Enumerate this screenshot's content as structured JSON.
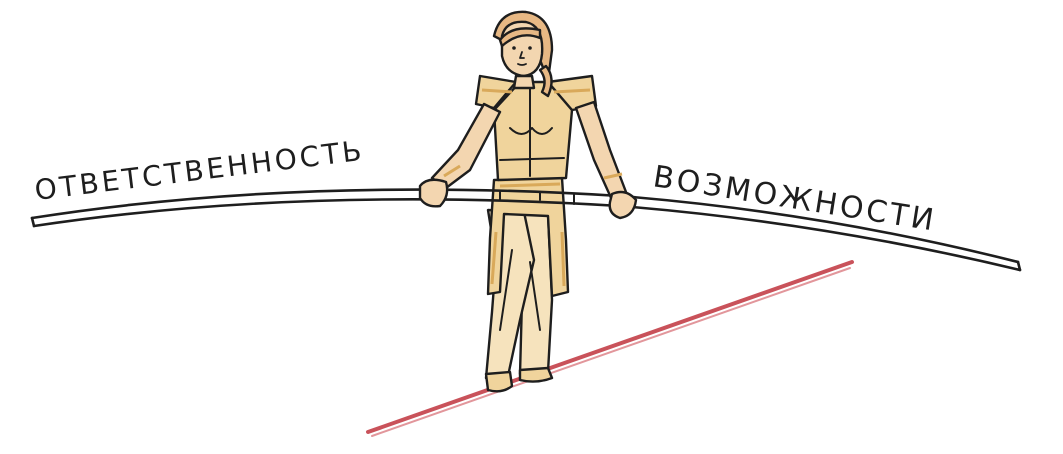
{
  "labels": {
    "left": "ОТВЕТСТВЕННОСТЬ",
    "right": "ВОЗМОЖНОСТИ"
  },
  "colors": {
    "ink": "#1e1e1e",
    "rope": "#c9525a",
    "skin": "#f3d6b0",
    "costume": "#f0d49c",
    "hair": "#e7b884"
  }
}
